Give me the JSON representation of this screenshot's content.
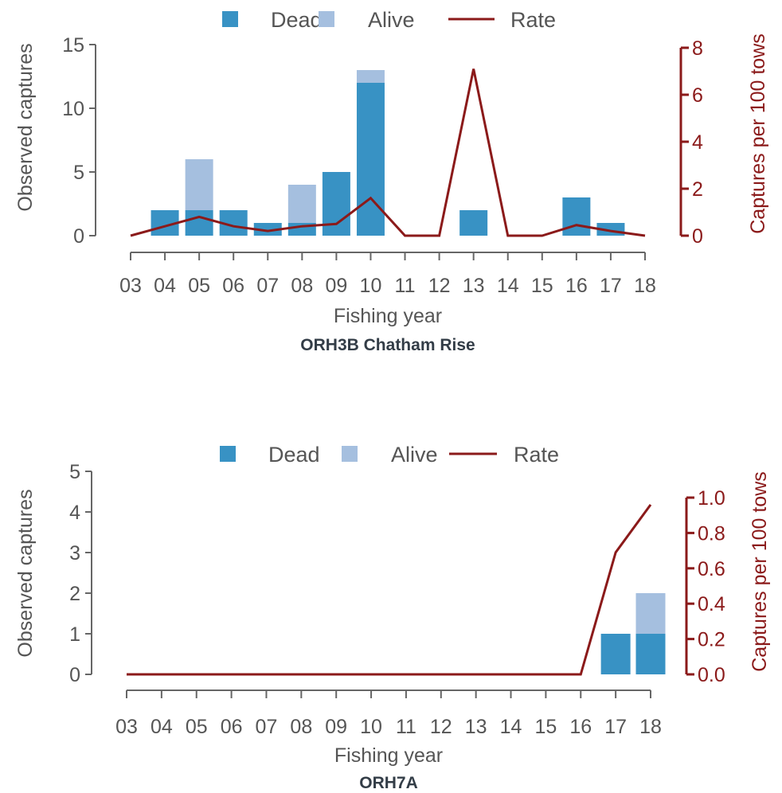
{
  "chart_data": [
    {
      "type": "bar",
      "title": "ORH3B Chatham Rise",
      "xlabel": "Fishing year",
      "ylabel": "Observed captures",
      "y2label": "Captures per 100 tows",
      "categories": [
        "03",
        "04",
        "05",
        "06",
        "07",
        "08",
        "09",
        "10",
        "11",
        "12",
        "13",
        "14",
        "15",
        "16",
        "17",
        "18"
      ],
      "ylim": [
        0,
        15
      ],
      "yticks": [
        0,
        5,
        10,
        15
      ],
      "y2lim": [
        0,
        8
      ],
      "y2ticks": [
        0,
        2,
        4,
        6,
        8
      ],
      "legend": [
        "Dead",
        "Alive",
        "Rate"
      ],
      "stacked": true,
      "series": [
        {
          "name": "Dead",
          "kind": "bar",
          "values": [
            0,
            2,
            2,
            2,
            1,
            1,
            5,
            12,
            0,
            0,
            2,
            0,
            0,
            3,
            1,
            0
          ]
        },
        {
          "name": "Alive",
          "kind": "bar",
          "values": [
            0,
            0,
            4,
            0,
            0,
            3,
            0,
            1,
            0,
            0,
            0,
            0,
            0,
            0,
            0,
            0
          ]
        },
        {
          "name": "Rate",
          "kind": "line",
          "axis": "right",
          "values": [
            0,
            0.4,
            0.8,
            0.4,
            0.2,
            0.4,
            0.5,
            1.6,
            0,
            0,
            7.1,
            0,
            0,
            0.45,
            0.2,
            0
          ]
        }
      ]
    },
    {
      "type": "bar",
      "title": "ORH7A",
      "xlabel": "Fishing year",
      "ylabel": "Observed captures",
      "y2label": "Captures per 100 tows",
      "categories": [
        "03",
        "04",
        "05",
        "06",
        "07",
        "08",
        "09",
        "10",
        "11",
        "12",
        "13",
        "14",
        "15",
        "16",
        "17",
        "18"
      ],
      "ylim": [
        0,
        5
      ],
      "yticks": [
        0,
        1,
        2,
        3,
        4,
        5
      ],
      "y2lim": [
        0,
        1.0
      ],
      "y2ticks": [
        "0.0",
        "0.2",
        "0.4",
        "0.6",
        "0.8",
        "1.0"
      ],
      "legend": [
        "Dead",
        "Alive",
        "Rate"
      ],
      "stacked": true,
      "series": [
        {
          "name": "Dead",
          "kind": "bar",
          "values": [
            0,
            0,
            0,
            0,
            0,
            0,
            0,
            0,
            0,
            0,
            0,
            0,
            0,
            0,
            1,
            1
          ]
        },
        {
          "name": "Alive",
          "kind": "bar",
          "values": [
            0,
            0,
            0,
            0,
            0,
            0,
            0,
            0,
            0,
            0,
            0,
            0,
            0,
            0,
            0,
            1
          ]
        },
        {
          "name": "Rate",
          "kind": "line",
          "axis": "right",
          "values": [
            0,
            0,
            0,
            0,
            0,
            0,
            0,
            0,
            0,
            0,
            0,
            0,
            0,
            0,
            0.69,
            0.96
          ]
        }
      ]
    }
  ],
  "colors": {
    "dead": "#3892c4",
    "alive": "#a5bfdf",
    "rate": "#8b1a1a",
    "axis": "#666666",
    "text": "#555555"
  }
}
